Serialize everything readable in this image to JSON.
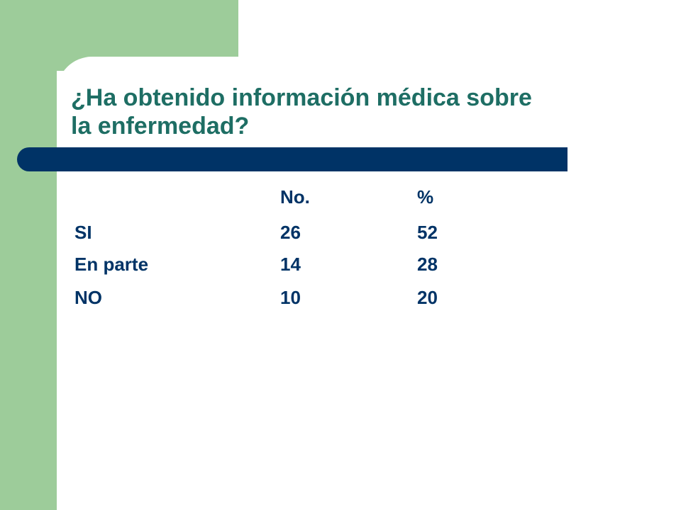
{
  "slide": {
    "title_lines": [
      "¿Ha obtenido información médica sobre",
      "la enfermedad?"
    ],
    "colors": {
      "green_panel": "#9dcc9a",
      "title_text": "#1e6e64",
      "rule_bar": "#003366",
      "table_text": "#003366"
    }
  },
  "table": {
    "headers": [
      "",
      "No.",
      "%"
    ],
    "rows": [
      [
        "SI",
        "26",
        "52"
      ],
      [
        "En parte",
        "14",
        "28"
      ],
      [
        "NO",
        "10",
        "20"
      ]
    ]
  }
}
